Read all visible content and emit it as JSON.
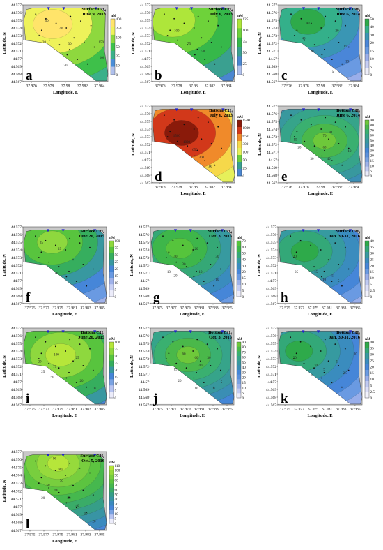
{
  "common": {
    "ylabel": "Latitude, N",
    "xlabel": "Longitude, E",
    "unit": "nM",
    "lat_ticks": [
      "44.577",
      "44.576",
      "44.575",
      "44.574",
      "44.573",
      "44.572",
      "44.571",
      "44.57",
      "44.569",
      "44.568",
      "44.567"
    ],
    "lon_ticks_a": [
      "37.976",
      "37.978",
      "37.98",
      "37.982",
      "37.984"
    ],
    "lon_ticks_b": [
      "37.975",
      "37.977",
      "37.979",
      "37.981",
      "37.983",
      "37.985"
    ]
  },
  "panels": [
    {
      "id": "a",
      "letter": "a",
      "title1": "Surface CH₄",
      "title2": "June 9, 2013",
      "scale": [
        "400",
        "250",
        "100",
        "50",
        "25",
        "10",
        "0"
      ],
      "colors": [
        "#ffe46a",
        "#eef25a",
        "#8ed83e",
        "#3ec04a",
        "#3ab08a",
        "#4a8ed8",
        "#b0c0ec"
      ],
      "contours": [
        "50",
        "40",
        "30",
        "20",
        "20",
        "100",
        "150"
      ]
    },
    {
      "id": "b",
      "letter": "b",
      "title1": "Surface CH₄",
      "title2": "July 6, 2013",
      "scale": [
        "125",
        "100",
        "75",
        "50",
        "25",
        "0"
      ],
      "colors": [
        "#aee63a",
        "#6ed23a",
        "#36b84a",
        "#3aa090",
        "#4a86d0",
        "#b0c0ec"
      ],
      "contours": [
        "100",
        "75",
        "50"
      ]
    },
    {
      "id": "c",
      "letter": "c",
      "title1": "Surface CH₄",
      "title2": "June 6, 2014",
      "scale": [
        "50",
        "40",
        "30",
        "20",
        "15",
        "10",
        "5",
        "0"
      ],
      "colors": [
        "#2eaa4a",
        "#34b08a",
        "#3a96b4",
        "#4a86d8",
        "#6a9ae2",
        "#9aaeea",
        "#c6cef4",
        "#eeeefa"
      ],
      "contours": [
        "40",
        "40",
        "30",
        "20",
        "15",
        "10",
        "5"
      ]
    },
    {
      "id": "d",
      "letter": "d",
      "title1": "Bottom CH₄",
      "title2": "July 6, 2013",
      "scale": [
        "1500",
        "1000",
        "650",
        "300",
        "100",
        "50",
        "25",
        "0"
      ],
      "colors": [
        "#8a1a0a",
        "#d2381a",
        "#f08a2a",
        "#f6d84a",
        "#e6f05a",
        "#6ccf3e",
        "#3aa090",
        "#4a86d0"
      ],
      "contours": [
        "1500",
        "1000",
        "650",
        "300",
        "100"
      ]
    },
    {
      "id": "e",
      "letter": "e",
      "title1": "Bottom CH₄",
      "title2": "June 6, 2014",
      "scale": [
        "90",
        "80",
        "70",
        "60",
        "50",
        "40",
        "30",
        "20",
        "15",
        "10",
        "5",
        "0"
      ],
      "colors": [
        "#6ec83a",
        "#4ab84a",
        "#3ab070",
        "#36a48a",
        "#38989e",
        "#3a8eb4",
        "#4486d6",
        "#5a90dc",
        "#7aa2e2",
        "#9eb2ea",
        "#c4ccf2",
        "#ececfa"
      ],
      "contours": [
        "70",
        "60",
        "50",
        "40",
        "30",
        "20",
        "15",
        "10"
      ]
    },
    {
      "id": "f",
      "letter": "f",
      "title1": "Surface CH₄",
      "title2": "June 20, 2015",
      "scale": [
        "100",
        "75",
        "50",
        "25",
        "20",
        "15",
        "10",
        "5",
        "0"
      ],
      "colors": [
        "#8ed83e",
        "#58c43e",
        "#36ae5e",
        "#3898a0",
        "#4686d8",
        "#6a9ae2",
        "#a0b2ea",
        "#c8d0f4",
        "#ececfa"
      ],
      "contours": [
        "25",
        "25",
        "10"
      ]
    },
    {
      "id": "g",
      "letter": "g",
      "title1": "Surface CH₄",
      "title2": "Oct. 3, 2015",
      "scale": [
        "70",
        "60",
        "50",
        "40",
        "30",
        "20",
        "15",
        "10",
        "5",
        "0"
      ],
      "colors": [
        "#56c43c",
        "#3eb64a",
        "#35a876",
        "#379aa0",
        "#3a8cbe",
        "#4686d8",
        "#6a9ae2",
        "#9eb2ea",
        "#c6cef4",
        "#ececfa"
      ],
      "contours": [
        "40",
        "30",
        "20",
        "10",
        "20",
        "10",
        "10",
        "30"
      ]
    },
    {
      "id": "h",
      "letter": "h",
      "title1": "Surface CH₄",
      "title2": "Jan. 30-31, 2016",
      "scale": [
        "40",
        "35",
        "30",
        "25",
        "20",
        "15",
        "10",
        "5",
        "2.5",
        "0"
      ],
      "colors": [
        "#2eaa4a",
        "#33a878",
        "#369aa0",
        "#3a8cbe",
        "#4686d8",
        "#6a9ae2",
        "#98aeea",
        "#c0caf2",
        "#dcdff8",
        "#f2f2fc"
      ],
      "contours": [
        "20",
        "25",
        "15",
        "10",
        "5",
        "5"
      ]
    },
    {
      "id": "i",
      "letter": "i",
      "title1": "Bottom CH₄",
      "title2": "June 20, 2015",
      "scale": [
        "100",
        "75",
        "50",
        "25",
        "20",
        "15",
        "10",
        "5",
        "0"
      ],
      "colors": [
        "#b6e63a",
        "#8ed83e",
        "#58c43e",
        "#36ae5e",
        "#3898a0",
        "#4686d8",
        "#7aa2e2",
        "#b8c4f0",
        "#ececfa"
      ],
      "contours": [
        "100",
        "75",
        "50",
        "25",
        "20",
        "25",
        "20",
        "10"
      ]
    },
    {
      "id": "j",
      "letter": "j",
      "title1": "Bottom CH₄",
      "title2": "Oct. 3, 2015",
      "scale": [
        "90",
        "80",
        "70",
        "60",
        "50",
        "40",
        "30",
        "20",
        "15",
        "10",
        "5",
        "0"
      ],
      "colors": [
        "#6ec83a",
        "#4ab84a",
        "#3ab070",
        "#36a48a",
        "#38989e",
        "#3a8eb4",
        "#4486d6",
        "#5a90dc",
        "#7aa2e2",
        "#9eb2ea",
        "#c4ccf2",
        "#ececfa"
      ],
      "contours": [
        "60",
        "60",
        "40",
        "30",
        "20",
        "15",
        "10",
        "10",
        "5"
      ]
    },
    {
      "id": "k",
      "letter": "k",
      "title1": "Bottom CH₄",
      "title2": "Jan. 30-31, 2016",
      "scale": [
        "40",
        "35",
        "30",
        "25",
        "20",
        "15",
        "10",
        "5",
        "2.5",
        "0"
      ],
      "colors": [
        "#2eaa4a",
        "#33a878",
        "#369aa0",
        "#3a8cbe",
        "#4686d8",
        "#6a9ae2",
        "#98aeea",
        "#c0caf2",
        "#dcdff8",
        "#f2f2fc"
      ],
      "contours": [
        "20",
        "10",
        "5",
        "5",
        "10",
        "5",
        "2.5"
      ]
    },
    {
      "id": "l",
      "letter": "l",
      "title1": "Surface CH₄",
      "title2": "Oct. 5, 2016",
      "scale": [
        "110",
        "100",
        "90",
        "80",
        "70",
        "60",
        "50",
        "40",
        "30",
        "20",
        "10",
        "5",
        "0"
      ],
      "colors": [
        "#b6e63a",
        "#96da3c",
        "#78ce3e",
        "#5cc440",
        "#46b84e",
        "#3aac68",
        "#369e88",
        "#3894a4",
        "#3a8abe",
        "#4686d8",
        "#7aa2e2",
        "#b8c4f0",
        "#ececfa"
      ],
      "contours": [
        "90",
        "80",
        "70",
        "60",
        "50",
        "40",
        "30",
        "20",
        "50",
        "20"
      ]
    }
  ]
}
